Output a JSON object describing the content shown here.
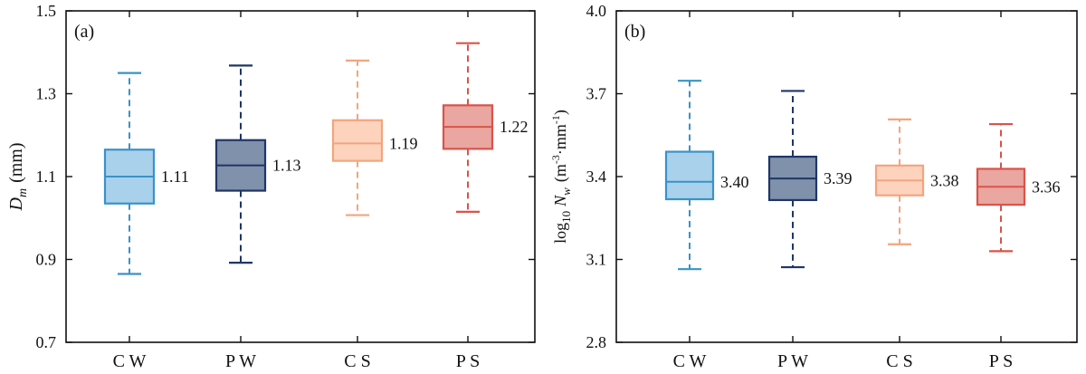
{
  "chart_data": [
    {
      "type": "box",
      "panel_label": "(a)",
      "ylabel_main": "D",
      "ylabel_sub": "m",
      "ylabel_unit": "(mm)",
      "ylim": [
        0.7,
        1.5
      ],
      "yticks": [
        "0.7",
        "0.9",
        "1.1",
        "1.3",
        "1.5"
      ],
      "ytick_values": [
        0.7,
        0.9,
        1.1,
        1.3,
        1.5
      ],
      "categories": [
        "C W",
        "P W",
        "C S",
        "P S"
      ],
      "colors": [
        "#3a92c7",
        "#1f3666",
        "#f2a57e",
        "#d9534a"
      ],
      "fills": [
        "#a9d1ec",
        "#8091ac",
        "#fdd3bd",
        "#eaa6a0"
      ],
      "boxes": [
        {
          "whisker_low": 0.865,
          "q1": 1.035,
          "median": 1.1,
          "q3": 1.165,
          "whisker_high": 1.35,
          "mean_label": "1.11"
        },
        {
          "whisker_low": 0.892,
          "q1": 1.066,
          "median": 1.127,
          "q3": 1.188,
          "whisker_high": 1.368,
          "mean_label": "1.13"
        },
        {
          "whisker_low": 1.007,
          "q1": 1.138,
          "median": 1.18,
          "q3": 1.236,
          "whisker_high": 1.38,
          "mean_label": "1.19"
        },
        {
          "whisker_low": 1.015,
          "q1": 1.167,
          "median": 1.22,
          "q3": 1.272,
          "whisker_high": 1.422,
          "mean_label": "1.22"
        }
      ]
    },
    {
      "type": "box",
      "panel_label": "(b)",
      "ylabel_prefix": "log",
      "ylabel_prefix_sub": "10",
      "ylabel_main": "N",
      "ylabel_sub": "w",
      "ylabel_unit": "(m",
      "ylabel_unit_sup1": "-3",
      "ylabel_unit_mid": "·mm",
      "ylabel_unit_sup2": "-1",
      "ylabel_unit_end": ")",
      "ylim": [
        2.8,
        4.0
      ],
      "yticks": [
        "2.8",
        "3.1",
        "3.4",
        "3.7",
        "4.0"
      ],
      "ytick_values": [
        2.8,
        3.1,
        3.4,
        3.7,
        4.0
      ],
      "categories": [
        "C W",
        "P W",
        "C S",
        "P S"
      ],
      "colors": [
        "#3a92c7",
        "#1f3666",
        "#f2a57e",
        "#d9534a"
      ],
      "fills": [
        "#a9d1ec",
        "#8091ac",
        "#fdd3bd",
        "#eaa6a0"
      ],
      "boxes": [
        {
          "whisker_low": 3.065,
          "q1": 3.318,
          "median": 3.381,
          "q3": 3.49,
          "whisker_high": 3.747,
          "mean_label": "3.40"
        },
        {
          "whisker_low": 3.072,
          "q1": 3.315,
          "median": 3.393,
          "q3": 3.472,
          "whisker_high": 3.71,
          "mean_label": "3.39"
        },
        {
          "whisker_low": 3.155,
          "q1": 3.332,
          "median": 3.386,
          "q3": 3.44,
          "whisker_high": 3.607,
          "mean_label": "3.38"
        },
        {
          "whisker_low": 3.13,
          "q1": 3.298,
          "median": 3.363,
          "q3": 3.428,
          "whisker_high": 3.59,
          "mean_label": "3.36"
        }
      ]
    }
  ]
}
